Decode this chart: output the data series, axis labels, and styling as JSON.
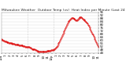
{
  "title": "Milwaukee Weather  Outdoor Temp (vs)  Heat Index per Minute (Last 24 Hours)",
  "background_color": "#ffffff",
  "plot_bg_color": "#ffffff",
  "line_color": "#dd0000",
  "grid_color": "#dddddd",
  "vline_color": "#aaaaaa",
  "vline_positions": [
    0.27,
    0.54
  ],
  "y_min": 44,
  "y_max": 96,
  "y_ticks": [
    44,
    48,
    52,
    56,
    60,
    64,
    68,
    72,
    76,
    80,
    84,
    88,
    92,
    96
  ],
  "x_points": [
    0,
    1,
    2,
    3,
    4,
    5,
    6,
    7,
    8,
    9,
    10,
    11,
    12,
    13,
    14,
    15,
    16,
    17,
    18,
    19,
    20,
    21,
    22,
    23,
    24,
    25,
    26,
    27,
    28,
    29,
    30,
    31,
    32,
    33,
    34,
    35,
    36,
    37,
    38,
    39,
    40,
    41,
    42,
    43,
    44,
    45,
    46,
    47,
    48,
    49,
    50,
    51,
    52,
    53,
    54,
    55,
    56,
    57,
    58,
    59,
    60,
    61,
    62,
    63,
    64,
    65,
    66,
    67,
    68,
    69,
    70,
    71,
    72,
    73,
    74,
    75,
    76,
    77,
    78,
    79,
    80,
    81,
    82,
    83,
    84,
    85,
    86,
    87,
    88,
    89,
    90,
    91,
    92,
    93,
    94,
    95,
    96,
    97,
    98,
    99,
    100,
    101,
    102,
    103,
    104,
    105,
    106,
    107,
    108,
    109,
    110,
    111,
    112,
    113,
    114,
    115,
    116,
    117,
    118,
    119,
    120,
    121,
    122,
    123,
    124,
    125,
    126,
    127,
    128,
    129,
    130,
    131,
    132,
    133,
    134,
    135,
    136,
    137,
    138,
    139,
    140,
    141,
    142
  ],
  "y_points": [
    62,
    61,
    61,
    60,
    60,
    59,
    59,
    59,
    58,
    58,
    58,
    57,
    57,
    57,
    57,
    57,
    56,
    56,
    56,
    56,
    55,
    55,
    55,
    55,
    55,
    55,
    54,
    54,
    54,
    54,
    54,
    54,
    53,
    53,
    53,
    52,
    52,
    52,
    52,
    52,
    52,
    52,
    51,
    51,
    50,
    49,
    49,
    49,
    49,
    49,
    48,
    48,
    47,
    47,
    46,
    46,
    46,
    46,
    46,
    46,
    46,
    46,
    46,
    46,
    46,
    46,
    46,
    47,
    47,
    47,
    47,
    47,
    47,
    48,
    48,
    48,
    48,
    49,
    49,
    50,
    51,
    52,
    53,
    55,
    57,
    58,
    60,
    62,
    64,
    66,
    68,
    70,
    72,
    74,
    76,
    78,
    80,
    82,
    84,
    85,
    86,
    87,
    88,
    89,
    89,
    89,
    88,
    88,
    87,
    86,
    86,
    86,
    87,
    88,
    89,
    90,
    90,
    90,
    89,
    88,
    87,
    87,
    86,
    85,
    84,
    83,
    82,
    80,
    79,
    77,
    75,
    73,
    71,
    69,
    68,
    66,
    64,
    62,
    60,
    58,
    56,
    54,
    52
  ],
  "marker": ".",
  "markersize": 0.8,
  "linewidth": 0.5,
  "title_fontsize": 3.2,
  "tick_fontsize": 2.8,
  "time_labels": [
    "12a",
    "1",
    "2",
    "3",
    "4",
    "5",
    "6",
    "7",
    "8",
    "9",
    "10",
    "11",
    "12p",
    "1",
    "2",
    "3",
    "4",
    "5",
    "6",
    "7",
    "8",
    "9",
    "10",
    "11"
  ]
}
